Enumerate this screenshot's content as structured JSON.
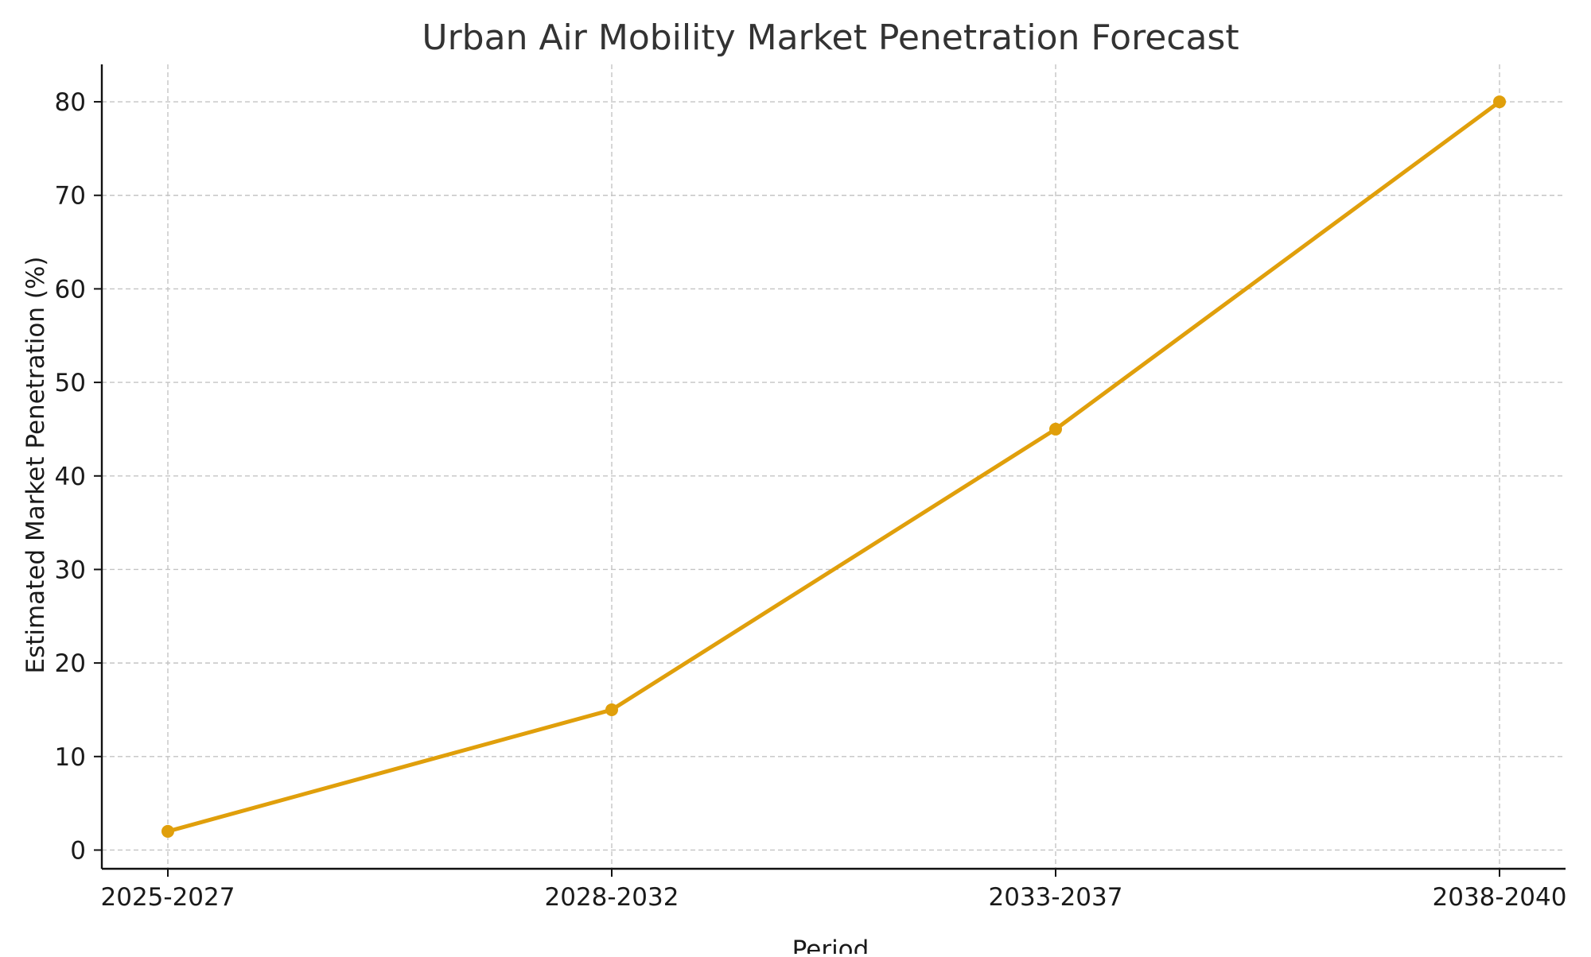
{
  "chart_data": {
    "type": "line",
    "title": "Urban Air Mobility Market Penetration Forecast",
    "xlabel": "Period",
    "ylabel": "Estimated Market Penetration (%)",
    "categories": [
      "2025-2027",
      "2028-2032",
      "2033-2037",
      "2038-2040"
    ],
    "series": [
      {
        "name": "Estimated Market Penetration",
        "values": [
          2,
          15,
          45,
          80
        ],
        "color": "#e09f0b"
      }
    ],
    "ylim": [
      -2,
      84
    ],
    "yticks": [
      0,
      10,
      20,
      30,
      40,
      50,
      60,
      70,
      80
    ],
    "grid": true,
    "legend": "none"
  }
}
